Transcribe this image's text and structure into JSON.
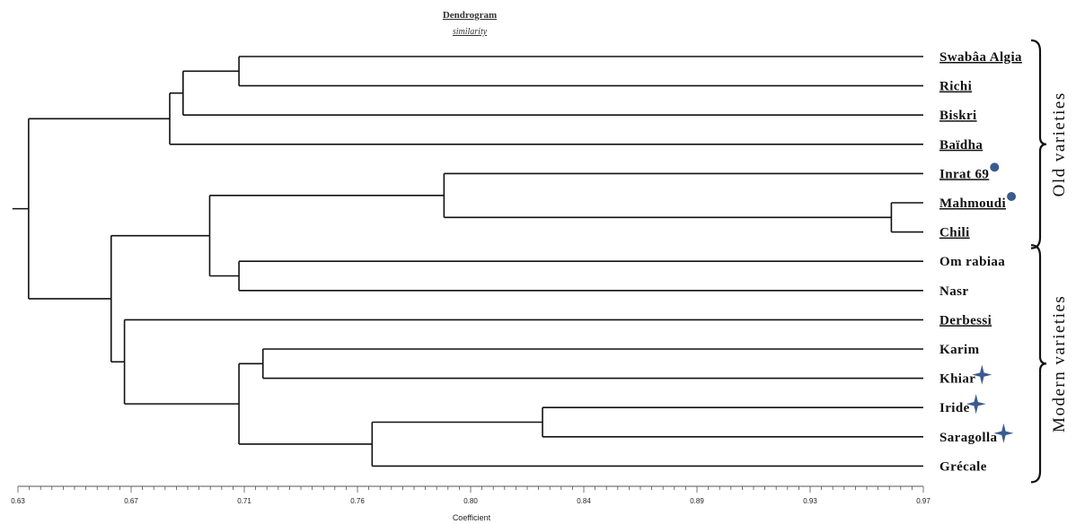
{
  "chart_data": {
    "type": "dendrogram",
    "title": "Dendrogram",
    "subtitle": "similarity",
    "xlabel": "Coefficient",
    "xlim": [
      0.63,
      0.97
    ],
    "ticks": [
      "0.63",
      "0.67",
      "0.71",
      "0.76",
      "0.80",
      "0.84",
      "0.89",
      "0.93",
      "0.97"
    ],
    "leaves": [
      {
        "label": "Swabâa Algia",
        "underlined": true,
        "marker": null
      },
      {
        "label": "Richi",
        "underlined": true,
        "marker": null
      },
      {
        "label": "Biskri",
        "underlined": true,
        "marker": null
      },
      {
        "label": "Baïdha",
        "underlined": true,
        "marker": null
      },
      {
        "label": "Inrat 69",
        "underlined": true,
        "marker": "circle"
      },
      {
        "label": "Mahmoudi",
        "underlined": true,
        "marker": "circle"
      },
      {
        "label": "Chili",
        "underlined": true,
        "marker": null
      },
      {
        "label": "Om rabiaa",
        "underlined": false,
        "marker": null
      },
      {
        "label": "Nasr",
        "underlined": false,
        "marker": null
      },
      {
        "label": "Derbessi",
        "underlined": true,
        "marker": null
      },
      {
        "label": "Karim",
        "underlined": false,
        "marker": null
      },
      {
        "label": "Khiar",
        "underlined": false,
        "marker": "star"
      },
      {
        "label": "Iride",
        "underlined": false,
        "marker": "star"
      },
      {
        "label": "Saragolla",
        "underlined": false,
        "marker": "star"
      },
      {
        "label": "Grécale",
        "underlined": false,
        "marker": null
      }
    ],
    "merges": [
      {
        "id": "A",
        "left": "Swabâa Algia",
        "right": "Richi",
        "similarity": 0.713
      },
      {
        "id": "B",
        "left": "A",
        "right": "Biskri",
        "similarity": 0.692
      },
      {
        "id": "C",
        "left": "B",
        "right": "Baïdha",
        "similarity": 0.687
      },
      {
        "id": "D",
        "left": "Mahmoudi",
        "right": "Chili",
        "similarity": 0.958
      },
      {
        "id": "E",
        "left": "Inrat 69",
        "right": "D",
        "similarity": 0.79
      },
      {
        "id": "F",
        "left": "Om rabiaa",
        "right": "Nasr",
        "similarity": 0.713
      },
      {
        "id": "G",
        "left": "E",
        "right": "F",
        "similarity": 0.702
      },
      {
        "id": "H",
        "left": "Iride",
        "right": "Saragolla",
        "similarity": 0.827
      },
      {
        "id": "I",
        "left": "H",
        "right": "Grécale",
        "similarity": 0.763
      },
      {
        "id": "J",
        "left": "Karim",
        "right": "Khiar",
        "similarity": 0.722
      },
      {
        "id": "K",
        "left": "J",
        "right": "I",
        "similarity": 0.713
      },
      {
        "id": "L",
        "left": "Derbessi",
        "right": "K",
        "similarity": 0.67
      },
      {
        "id": "M",
        "left": "G",
        "right": "L",
        "similarity": 0.665
      },
      {
        "id": "N",
        "left": "C",
        "right": "M",
        "similarity": 0.634
      }
    ],
    "groups": [
      {
        "label": "Old varieties",
        "from": "Swabâa Algia",
        "to": "Chili"
      },
      {
        "label": "Modern varieties",
        "from": "Om rabiaa",
        "to": "Grécale"
      }
    ],
    "colors": {
      "branch": "#111111",
      "marker": "#3b5a8f"
    }
  }
}
